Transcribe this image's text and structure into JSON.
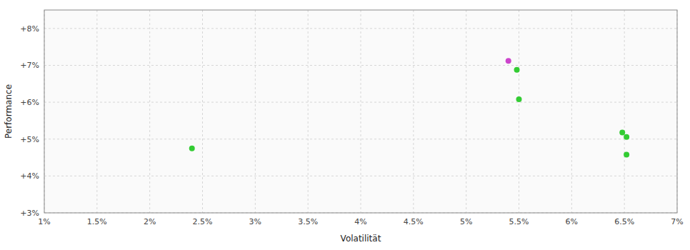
{
  "chart_data": {
    "type": "scatter",
    "xlabel": "Volatilität",
    "ylabel": "Performance",
    "x": [
      0.024,
      0.054,
      0.0548,
      0.055,
      0.0648,
      0.0652,
      0.0652
    ],
    "values": [
      0.0475,
      0.0712,
      0.0688,
      0.0608,
      0.0518,
      0.0506,
      0.0458
    ],
    "colors": [
      "#33cc33",
      "#cc44cc",
      "#33cc33",
      "#33cc33",
      "#33cc33",
      "#33cc33",
      "#33cc33"
    ],
    "xlim": [
      0.01,
      0.07
    ],
    "ylim": [
      0.03,
      0.085
    ],
    "xticks": [
      {
        "value": 0.01,
        "label": "1%"
      },
      {
        "value": 0.015,
        "label": "1.5%"
      },
      {
        "value": 0.02,
        "label": "2%"
      },
      {
        "value": 0.025,
        "label": "2.5%"
      },
      {
        "value": 0.03,
        "label": "3%"
      },
      {
        "value": 0.035,
        "label": "3.5%"
      },
      {
        "value": 0.04,
        "label": "4%"
      },
      {
        "value": 0.045,
        "label": "4.5%"
      },
      {
        "value": 0.05,
        "label": "5%"
      },
      {
        "value": 0.055,
        "label": "5.5%"
      },
      {
        "value": 0.06,
        "label": "6%"
      },
      {
        "value": 0.065,
        "label": "6.5%"
      },
      {
        "value": 0.07,
        "label": "7%"
      }
    ],
    "yticks": [
      {
        "value": 0.03,
        "label": "+3%"
      },
      {
        "value": 0.04,
        "label": "+4%"
      },
      {
        "value": 0.05,
        "label": "+5%"
      },
      {
        "value": 0.06,
        "label": "+6%"
      },
      {
        "value": 0.07,
        "label": "+7%"
      },
      {
        "value": 0.08,
        "label": "+8%"
      }
    ],
    "grid": true
  }
}
